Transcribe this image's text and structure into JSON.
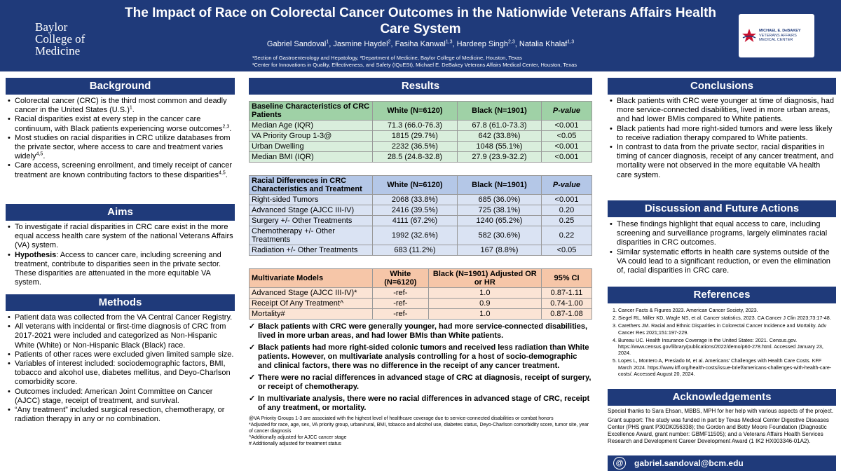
{
  "header": {
    "title": "The Impact of Race on Colorectal Cancer Outcomes in the Nationwide Veterans Affairs Health Care System",
    "authors": [
      {
        "name": "Gabriel Sandoval",
        "sup": "1"
      },
      {
        "name": "Jasmine Haydel",
        "sup": "2"
      },
      {
        "name": "Fasiha Kanwal",
        "sup": "1,3"
      },
      {
        "name": "Hardeep Singh",
        "sup": "2,3"
      },
      {
        "name": "Natalia Khalaf",
        "sup": "1,3"
      }
    ],
    "aff1": "¹Section of Gastroenterology and Hepatology, ²Department of Medicine, Baylor College of Medicine, Houston, Texas",
    "aff2": "³Center for Innovations in Quality, Effectiveness, and Safety (IQuESt), Michael E. DeBakey Veterans Affairs Medical Center, Houston, Texas",
    "logo_left": [
      "Baylor",
      "College of",
      "Medicine"
    ],
    "logo_right": [
      "MICHAEL E. DeBAKEY",
      "VETERANS AFFAIRS",
      "MEDICAL CENTER"
    ]
  },
  "background": {
    "heading": "Background",
    "bullets": [
      {
        "text": "Colorectal cancer (CRC) is the third most common and deadly cancer in the United States (U.S.)",
        "sup": "1",
        "tail": "."
      },
      {
        "text": "Racial disparities exist at every step in the cancer care continuum, with Black patients experiencing worse outcomes",
        "sup": "2,3",
        "tail": "."
      },
      {
        "text": "Most studies on racial disparities in CRC utilize databases from the private sector, where access to care and treatment varies widely",
        "sup": "4,5",
        "tail": "."
      },
      {
        "text": "Care access, screening enrollment, and timely receipt of cancer treatment are known contributing factors to these disparities",
        "sup": "4,5",
        "tail": "."
      }
    ]
  },
  "aims": {
    "heading": "Aims",
    "bullets": [
      "To investigate if racial disparities in CRC care exist in the more equal access health care system of the national Veterans Affairs (VA) system."
    ],
    "hyp_label": "Hypothesis",
    "hyp_text": ": Access to cancer care, including screening and treatment, contribute to disparities seen in the private sector. These disparities are attenuated in the more equitable VA system."
  },
  "methods": {
    "heading": "Methods",
    "bullets": [
      "Patient data was collected from the VA Central Cancer Registry.",
      "All veterans with incidental or first-time diagnosis of CRC from 2017-2021 were included and categorized as Non-Hispanic White (White) or Non-Hispanic Black (Black) race.",
      "Patients of other races were excluded given limited sample size.",
      "Variables of interest included: sociodemographic factors, BMI, tobacco and alcohol use, diabetes mellitus, and Deyo-Charlson comorbidity score.",
      "Outcomes included: American Joint Committee on Cancer (AJCC) stage, receipt of treatment, and survival.",
      "“Any treatment” included surgical resection, chemotherapy, or radiation therapy in any or no combination."
    ]
  },
  "results": {
    "heading": "Results",
    "t1": {
      "title": "Baseline Characteristics of CRC Patients",
      "cols": [
        "White (N=6120)",
        "Black (N=1901)",
        "P-value"
      ],
      "rows": [
        [
          "Median Age (IQR)",
          "71.3 (66.0-76.3)",
          "67.8 (61.0-73.3)",
          "<0.001"
        ],
        [
          "VA Priority Group 1-3@",
          "1815 (29.7%)",
          "642 (33.8%)",
          "<0.05"
        ],
        [
          "Urban Dwelling",
          "2232 (36.5%)",
          "1048 (55.1%)",
          "<0.001"
        ],
        [
          "Median BMI (IQR)",
          "28.5 (24.8-32.8)",
          "27.9 (23.9-32.2)",
          "<0.001"
        ]
      ]
    },
    "t2": {
      "title": "Racial Differences in CRC Characteristics and Treatment",
      "cols": [
        "White (N=6120)",
        "Black (N=1901)",
        "P-value"
      ],
      "rows": [
        [
          "Right-sided Tumors",
          "2068 (33.8%)",
          "685 (36.0%)",
          "<0.001"
        ],
        [
          "Advanced Stage (AJCC III-IV)",
          "2416 (39.5%)",
          "725 (38.1%)",
          "0.20"
        ],
        [
          "Surgery +/- Other Treatments",
          "4111 (67.2%)",
          "1240 (65.2%)",
          "0.25"
        ],
        [
          "Chemotherapy +/- Other Treatments",
          "1992 (32.6%)",
          "582 (30.6%)",
          "0.22"
        ],
        [
          "Radiation +/- Other Treatments",
          "683 (11.2%)",
          "167 (8.8%)",
          "<0.05"
        ]
      ]
    },
    "t3": {
      "title": "Multivariate Models",
      "cols": [
        "White (N=6120)",
        "Black (N=1901) Adjusted OR or HR",
        "95% CI"
      ],
      "rows": [
        [
          "Advanced Stage (AJCC III-IV)*",
          "-ref-",
          "1.0",
          "0.87-1.11"
        ],
        [
          "Receipt Of Any Treatment^",
          "-ref-",
          "0.9",
          "0.74-1.00"
        ],
        [
          "Mortality#",
          "-ref-",
          "1.0",
          "0.87-1.08"
        ]
      ]
    },
    "check": "✓",
    "findings": [
      "Black patients with CRC were generally younger, had more service-connected disabilities, lived in more urban areas, and had lower BMIs than White patients.",
      "Black patients had more right-sided colonic tumors and received less radiation than White patients. However, on multivariate analysis controlling for a host of socio-demographic and clinical factors, there was no difference in the receipt of any cancer treatment.",
      "There were no racial differences in advanced stage of CRC at diagnosis, receipt of surgery, or receipt of chemotherapy.",
      "In multivariate analysis, there were no racial differences in advanced stage of CRC, receipt of any treatment, or mortality."
    ],
    "notes": [
      "@VA Priority Groups 1-3 are associated with the highest level of healthcare coverage due to service-connected disabilities or combat honors",
      "*Adjusted for race, age, sex, VA priority group, urban/rural, BMI, tobacco and alcohol use, diabetes status, Deyo-Charlson comorbidity score, tumor site, year of cancer diagnosis",
      "^Additionally adjusted for AJCC cancer stage",
      "# Additionally adjusted for treatment status"
    ]
  },
  "conclusions": {
    "heading": "Conclusions",
    "bullets": [
      "Black patients with CRC were younger at time of diagnosis, had more service-connected disabilities, lived in more urban areas, and had lower BMIs compared to White patients.",
      "Black patients had more right-sided tumors and were less likely to receive radiation therapy compared to White patients.",
      "In contrast to data from the private sector, racial disparities in timing of cancer diagnosis, receipt of any cancer treatment, and mortality were not observed in the more equitable VA health care system."
    ]
  },
  "discussion": {
    "heading": "Discussion and Future Actions",
    "bullets": [
      "These findings highlight that equal access to care, including screening and surveillance programs, largely eliminates racial disparities in CRC outcomes.",
      "Similar systematic efforts in health care systems outside of the VA could lead to a significant reduction, or even the elimination of, racial disparities in CRC care."
    ]
  },
  "references": {
    "heading": "References",
    "items": [
      "Cancer Facts & Figures 2023. American Cancer Society, 2023.",
      "Siegel RL, Miller KD, Wagle NS, et al. Cancer statistics, 2023. CA Cancer J Clin 2023;73:17-48.",
      "Carethers JM. Racial and Ethnic Disparities in Colorectal Cancer Incidence and Mortality. Adv Cancer Res 2021;151:197-229.",
      "Bureau UC. Health Insurance Coverage in the United States: 2021. Census.gov. https://www.census.gov/library/publications/2022/demo/p60-278.html. Accessed January 23, 2024.",
      "Lopes L, Montero A, Presiado M, et al. Americans’ Challenges with Health Care Costs. KFF March 2024. https://www.kff.org/health-costs/issue-brief/americans-challenges-with-health-care-costs/. Accessed August 20, 2024."
    ]
  },
  "ack": {
    "heading": "Acknowledgements",
    "p1": "Special thanks to Sara Ehsan, MBBS, MPH for her help with various aspects of the project.",
    "p2": "Grant support: The study was funded in part by Texas Medical Center Digestive Diseases Center (PHS grant P30DK056338); the Gordon and Betty Moore Foundation (Diagnostic Excellence Award, grant number: GBMF11505); and a Veterans Affairs Health Services Research and Development Career Development Award (1 IK2 HX003346-01A2)."
  },
  "email": "gabriel.sandoval@bcm.edu",
  "email_icon": "@"
}
